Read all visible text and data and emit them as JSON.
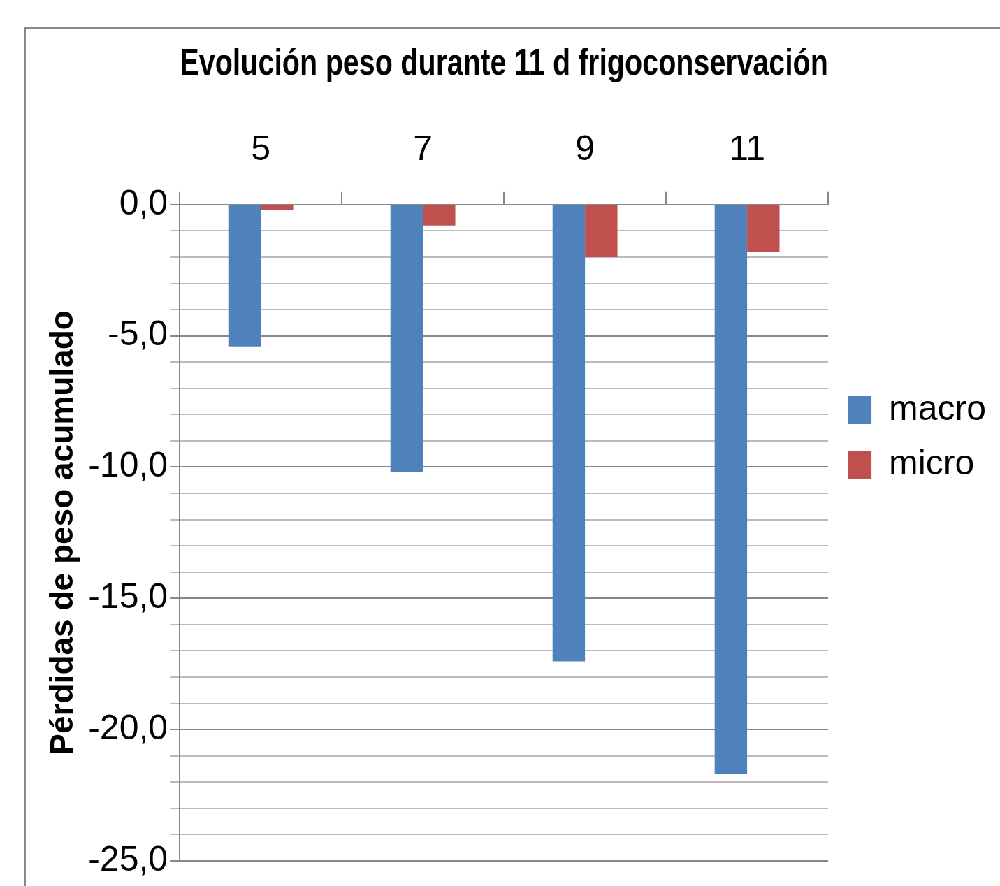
{
  "chart_data": {
    "type": "bar",
    "title": "Evolución peso durante 11 d frigoconservación",
    "ylabel": "Pérdidas de peso acumulado",
    "categories": [
      "5",
      "7",
      "9",
      "11"
    ],
    "series": [
      {
        "name": "macro",
        "color": "#4f81bd",
        "values": [
          -5.4,
          -10.2,
          -17.4,
          -21.7
        ]
      },
      {
        "name": "micro",
        "color": "#c0504d",
        "values": [
          -0.2,
          -0.8,
          -2.0,
          -1.8
        ]
      }
    ],
    "ylim": [
      -25,
      0
    ],
    "yticks": [
      {
        "value": -25,
        "label": "-25,0"
      },
      {
        "value": -24,
        "label": null
      },
      {
        "value": -23,
        "label": null
      },
      {
        "value": -22,
        "label": null
      },
      {
        "value": -21,
        "label": null
      },
      {
        "value": -20,
        "label": "-20,0"
      },
      {
        "value": -19,
        "label": null
      },
      {
        "value": -18,
        "label": null
      },
      {
        "value": -17,
        "label": null
      },
      {
        "value": -16,
        "label": null
      },
      {
        "value": -15,
        "label": "-15,0"
      },
      {
        "value": -14,
        "label": null
      },
      {
        "value": -13,
        "label": null
      },
      {
        "value": -12,
        "label": null
      },
      {
        "value": -11,
        "label": null
      },
      {
        "value": -10,
        "label": "-10,0"
      },
      {
        "value": -9,
        "label": null
      },
      {
        "value": -8,
        "label": null
      },
      {
        "value": -7,
        "label": null
      },
      {
        "value": -6,
        "label": null
      },
      {
        "value": -5,
        "label": "-5,0"
      },
      {
        "value": -4,
        "label": null
      },
      {
        "value": -3,
        "label": null
      },
      {
        "value": -2,
        "label": null
      },
      {
        "value": -1,
        "label": null
      },
      {
        "value": 0,
        "label": "0,0"
      }
    ],
    "grid": "y",
    "legend": "right"
  }
}
